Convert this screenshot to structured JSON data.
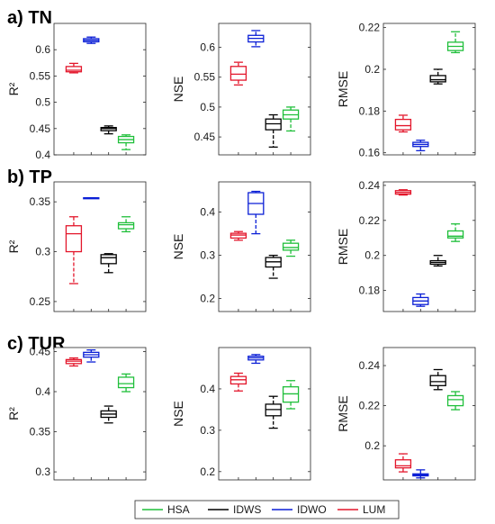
{
  "chart_data": {
    "type": "box",
    "series_order": [
      "LUM",
      "IDWO",
      "IDWS",
      "HSA"
    ],
    "legend": {
      "position": "bottom",
      "entries": [
        {
          "name": "HSA",
          "color": "#1fbf3a"
        },
        {
          "name": "IDWS",
          "color": "#000000"
        },
        {
          "name": "IDWO",
          "color": "#0b1fd6"
        },
        {
          "name": "LUM",
          "color": "#e3162b"
        }
      ]
    },
    "rows": [
      {
        "title": "a) TN",
        "panels": [
          {
            "ylabel": "R²",
            "ylim": [
              0.4,
              0.65
            ],
            "yticks": [
              "0.4",
              "0.45",
              "0.5",
              "0.55",
              "0.6"
            ],
            "boxes": [
              {
                "series": "LUM",
                "min": 0.556,
                "q1": 0.558,
                "median": 0.561,
                "q3": 0.568,
                "max": 0.574
              },
              {
                "series": "IDWO",
                "min": 0.612,
                "q1": 0.615,
                "median": 0.618,
                "q3": 0.621,
                "max": 0.624
              },
              {
                "series": "IDWS",
                "min": 0.44,
                "q1": 0.446,
                "median": 0.45,
                "q3": 0.452,
                "max": 0.455
              },
              {
                "series": "HSA",
                "min": 0.41,
                "q1": 0.423,
                "median": 0.429,
                "q3": 0.435,
                "max": 0.438
              }
            ]
          },
          {
            "ylabel": "NSE",
            "ylim": [
              0.42,
              0.64
            ],
            "yticks": [
              "0.45",
              "0.5",
              "0.55",
              "0.6"
            ],
            "boxes": [
              {
                "series": "LUM",
                "min": 0.537,
                "q1": 0.545,
                "median": 0.555,
                "q3": 0.568,
                "max": 0.575
              },
              {
                "series": "IDWO",
                "min": 0.601,
                "q1": 0.609,
                "median": 0.615,
                "q3": 0.62,
                "max": 0.628
              },
              {
                "series": "IDWS",
                "min": 0.433,
                "q1": 0.462,
                "median": 0.472,
                "q3": 0.48,
                "max": 0.487
              },
              {
                "series": "HSA",
                "min": 0.46,
                "q1": 0.48,
                "median": 0.487,
                "q3": 0.495,
                "max": 0.5
              }
            ]
          },
          {
            "ylabel": "RMSE",
            "ylim": [
              0.159,
              0.222
            ],
            "yticks": [
              "0.16",
              "0.18",
              "0.2",
              "0.22"
            ],
            "boxes": [
              {
                "series": "LUM",
                "min": 0.17,
                "q1": 0.171,
                "median": 0.173,
                "q3": 0.176,
                "max": 0.178
              },
              {
                "series": "IDWO",
                "min": 0.161,
                "q1": 0.163,
                "median": 0.164,
                "q3": 0.165,
                "max": 0.166
              },
              {
                "series": "IDWS",
                "min": 0.193,
                "q1": 0.194,
                "median": 0.195,
                "q3": 0.197,
                "max": 0.2
              },
              {
                "series": "HSA",
                "min": 0.208,
                "q1": 0.209,
                "median": 0.211,
                "q3": 0.213,
                "max": 0.218
              }
            ]
          }
        ]
      },
      {
        "title": "b) TP",
        "panels": [
          {
            "ylabel": "R²",
            "ylim": [
              0.24,
              0.37
            ],
            "yticks": [
              "0.25",
              "0.3",
              "0.35"
            ],
            "boxes": [
              {
                "series": "LUM",
                "min": 0.268,
                "q1": 0.3,
                "median": 0.318,
                "q3": 0.326,
                "max": 0.335
              },
              {
                "series": "IDWO",
                "min": 0.354,
                "q1": 0.354,
                "median": 0.354,
                "q3": 0.354,
                "max": 0.354
              },
              {
                "series": "IDWS",
                "min": 0.279,
                "q1": 0.288,
                "median": 0.294,
                "q3": 0.297,
                "max": 0.298
              },
              {
                "series": "HSA",
                "min": 0.32,
                "q1": 0.323,
                "median": 0.327,
                "q3": 0.329,
                "max": 0.335
              }
            ]
          },
          {
            "ylabel": "NSE",
            "ylim": [
              0.17,
              0.47
            ],
            "yticks": [
              "0.2",
              "0.3",
              "0.4"
            ],
            "boxes": [
              {
                "series": "LUM",
                "min": 0.335,
                "q1": 0.34,
                "median": 0.347,
                "q3": 0.351,
                "max": 0.355
              },
              {
                "series": "IDWO",
                "min": 0.35,
                "q1": 0.395,
                "median": 0.42,
                "q3": 0.445,
                "max": 0.448
              },
              {
                "series": "IDWS",
                "min": 0.247,
                "q1": 0.273,
                "median": 0.285,
                "q3": 0.295,
                "max": 0.3
              },
              {
                "series": "HSA",
                "min": 0.298,
                "q1": 0.312,
                "median": 0.318,
                "q3": 0.328,
                "max": 0.335
              }
            ]
          },
          {
            "ylabel": "RMSE",
            "ylim": [
              0.168,
              0.242
            ],
            "yticks": [
              "0.18",
              "0.2",
              "0.22",
              "0.24"
            ],
            "boxes": [
              {
                "series": "LUM",
                "min": 0.2345,
                "q1": 0.235,
                "median": 0.236,
                "q3": 0.237,
                "max": 0.2375
              },
              {
                "series": "IDWO",
                "min": 0.171,
                "q1": 0.172,
                "median": 0.174,
                "q3": 0.176,
                "max": 0.178
              },
              {
                "series": "IDWS",
                "min": 0.194,
                "q1": 0.195,
                "median": 0.196,
                "q3": 0.197,
                "max": 0.2
              },
              {
                "series": "HSA",
                "min": 0.208,
                "q1": 0.21,
                "median": 0.211,
                "q3": 0.214,
                "max": 0.218
              }
            ]
          }
        ]
      },
      {
        "title": "c) TUR",
        "panels": [
          {
            "ylabel": "R²",
            "ylim": [
              0.29,
              0.455
            ],
            "yticks": [
              "0.3",
              "0.35",
              "0.4",
              "0.45"
            ],
            "boxes": [
              {
                "series": "LUM",
                "min": 0.432,
                "q1": 0.435,
                "median": 0.438,
                "q3": 0.44,
                "max": 0.442
              },
              {
                "series": "IDWO",
                "min": 0.437,
                "q1": 0.443,
                "median": 0.446,
                "q3": 0.449,
                "max": 0.452
              },
              {
                "series": "IDWS",
                "min": 0.361,
                "q1": 0.368,
                "median": 0.372,
                "q3": 0.376,
                "max": 0.382
              },
              {
                "series": "HSA",
                "min": 0.4,
                "q1": 0.405,
                "median": 0.41,
                "q3": 0.418,
                "max": 0.422
              }
            ]
          },
          {
            "ylabel": "NSE",
            "ylim": [
              0.18,
              0.5
            ],
            "yticks": [
              "0.2",
              "0.3",
              "0.4"
            ],
            "boxes": [
              {
                "series": "LUM",
                "min": 0.395,
                "q1": 0.412,
                "median": 0.422,
                "q3": 0.43,
                "max": 0.438
              },
              {
                "series": "IDWO",
                "min": 0.462,
                "q1": 0.47,
                "median": 0.475,
                "q3": 0.479,
                "max": 0.483
              },
              {
                "series": "IDWS",
                "min": 0.305,
                "q1": 0.335,
                "median": 0.35,
                "q3": 0.363,
                "max": 0.382
              },
              {
                "series": "HSA",
                "min": 0.352,
                "q1": 0.368,
                "median": 0.388,
                "q3": 0.405,
                "max": 0.42
              }
            ]
          },
          {
            "ylabel": "RMSE",
            "ylim": [
              0.183,
              0.249
            ],
            "yticks": [
              "0.2",
              "0.22",
              "0.24"
            ],
            "boxes": [
              {
                "series": "LUM",
                "min": 0.187,
                "q1": 0.189,
                "median": 0.19,
                "q3": 0.193,
                "max": 0.196
              },
              {
                "series": "IDWO",
                "min": 0.184,
                "q1": 0.185,
                "median": 0.1855,
                "q3": 0.186,
                "max": 0.188
              },
              {
                "series": "IDWS",
                "min": 0.228,
                "q1": 0.23,
                "median": 0.232,
                "q3": 0.235,
                "max": 0.238
              },
              {
                "series": "HSA",
                "min": 0.218,
                "q1": 0.22,
                "median": 0.223,
                "q3": 0.225,
                "max": 0.227
              }
            ]
          }
        ]
      }
    ]
  }
}
